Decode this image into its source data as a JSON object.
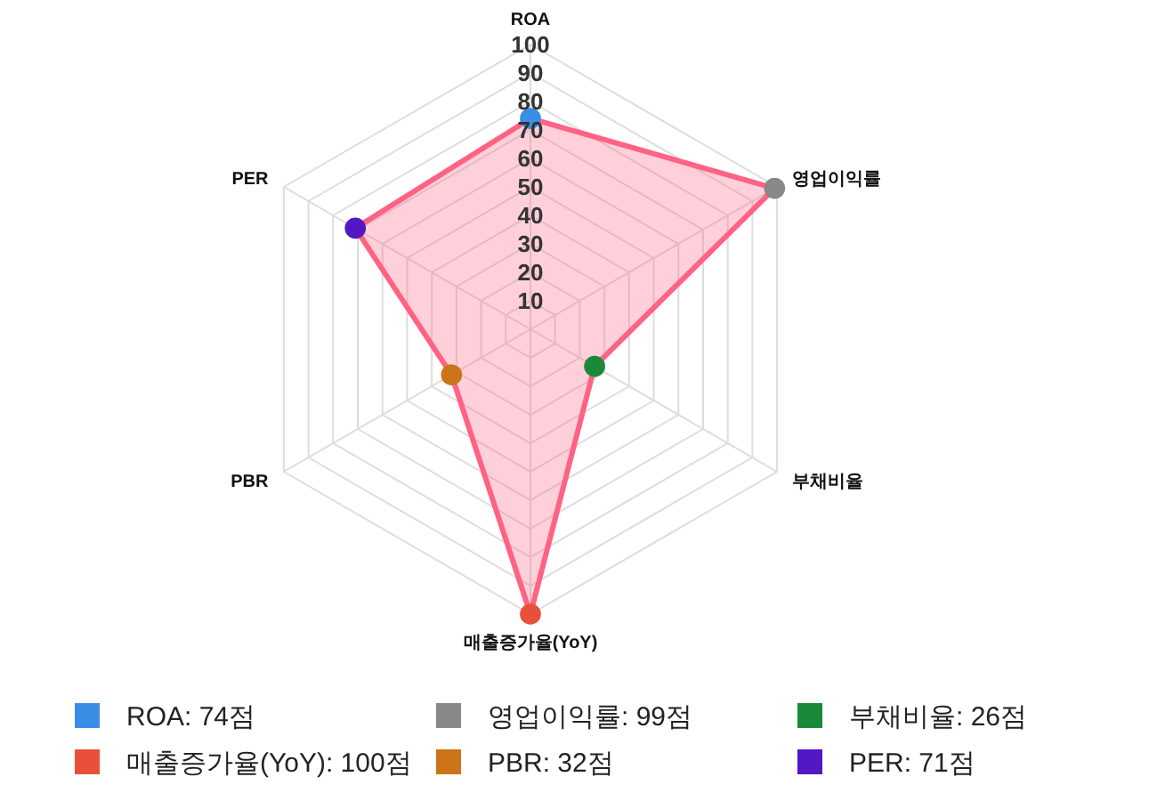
{
  "chart_data": {
    "type": "radar",
    "categories": [
      "ROA",
      "영업이익률",
      "부채비율",
      "매출증가율(YoY)",
      "PBR",
      "PER"
    ],
    "series": [
      {
        "color": "#ff6384",
        "values": [
          74,
          99,
          26,
          100,
          32,
          71
        ],
        "colors": [
          "#3a8ee6",
          "#888888",
          "#1a8a3a",
          "#e8503a",
          "#cc7418",
          "#5118c4"
        ]
      }
    ],
    "annotations": [
      "ROA: 74점",
      "영업이익률: 99점",
      "부채비율: 26점",
      "매출증가율(YoY): 100점",
      "PBR: 32점",
      "PER: 71점"
    ],
    "ylim": [
      0,
      100
    ],
    "yticks": [
      10,
      20,
      30,
      40,
      50,
      60,
      70,
      80,
      90,
      100
    ],
    "grid": true,
    "marker": "circle"
  }
}
